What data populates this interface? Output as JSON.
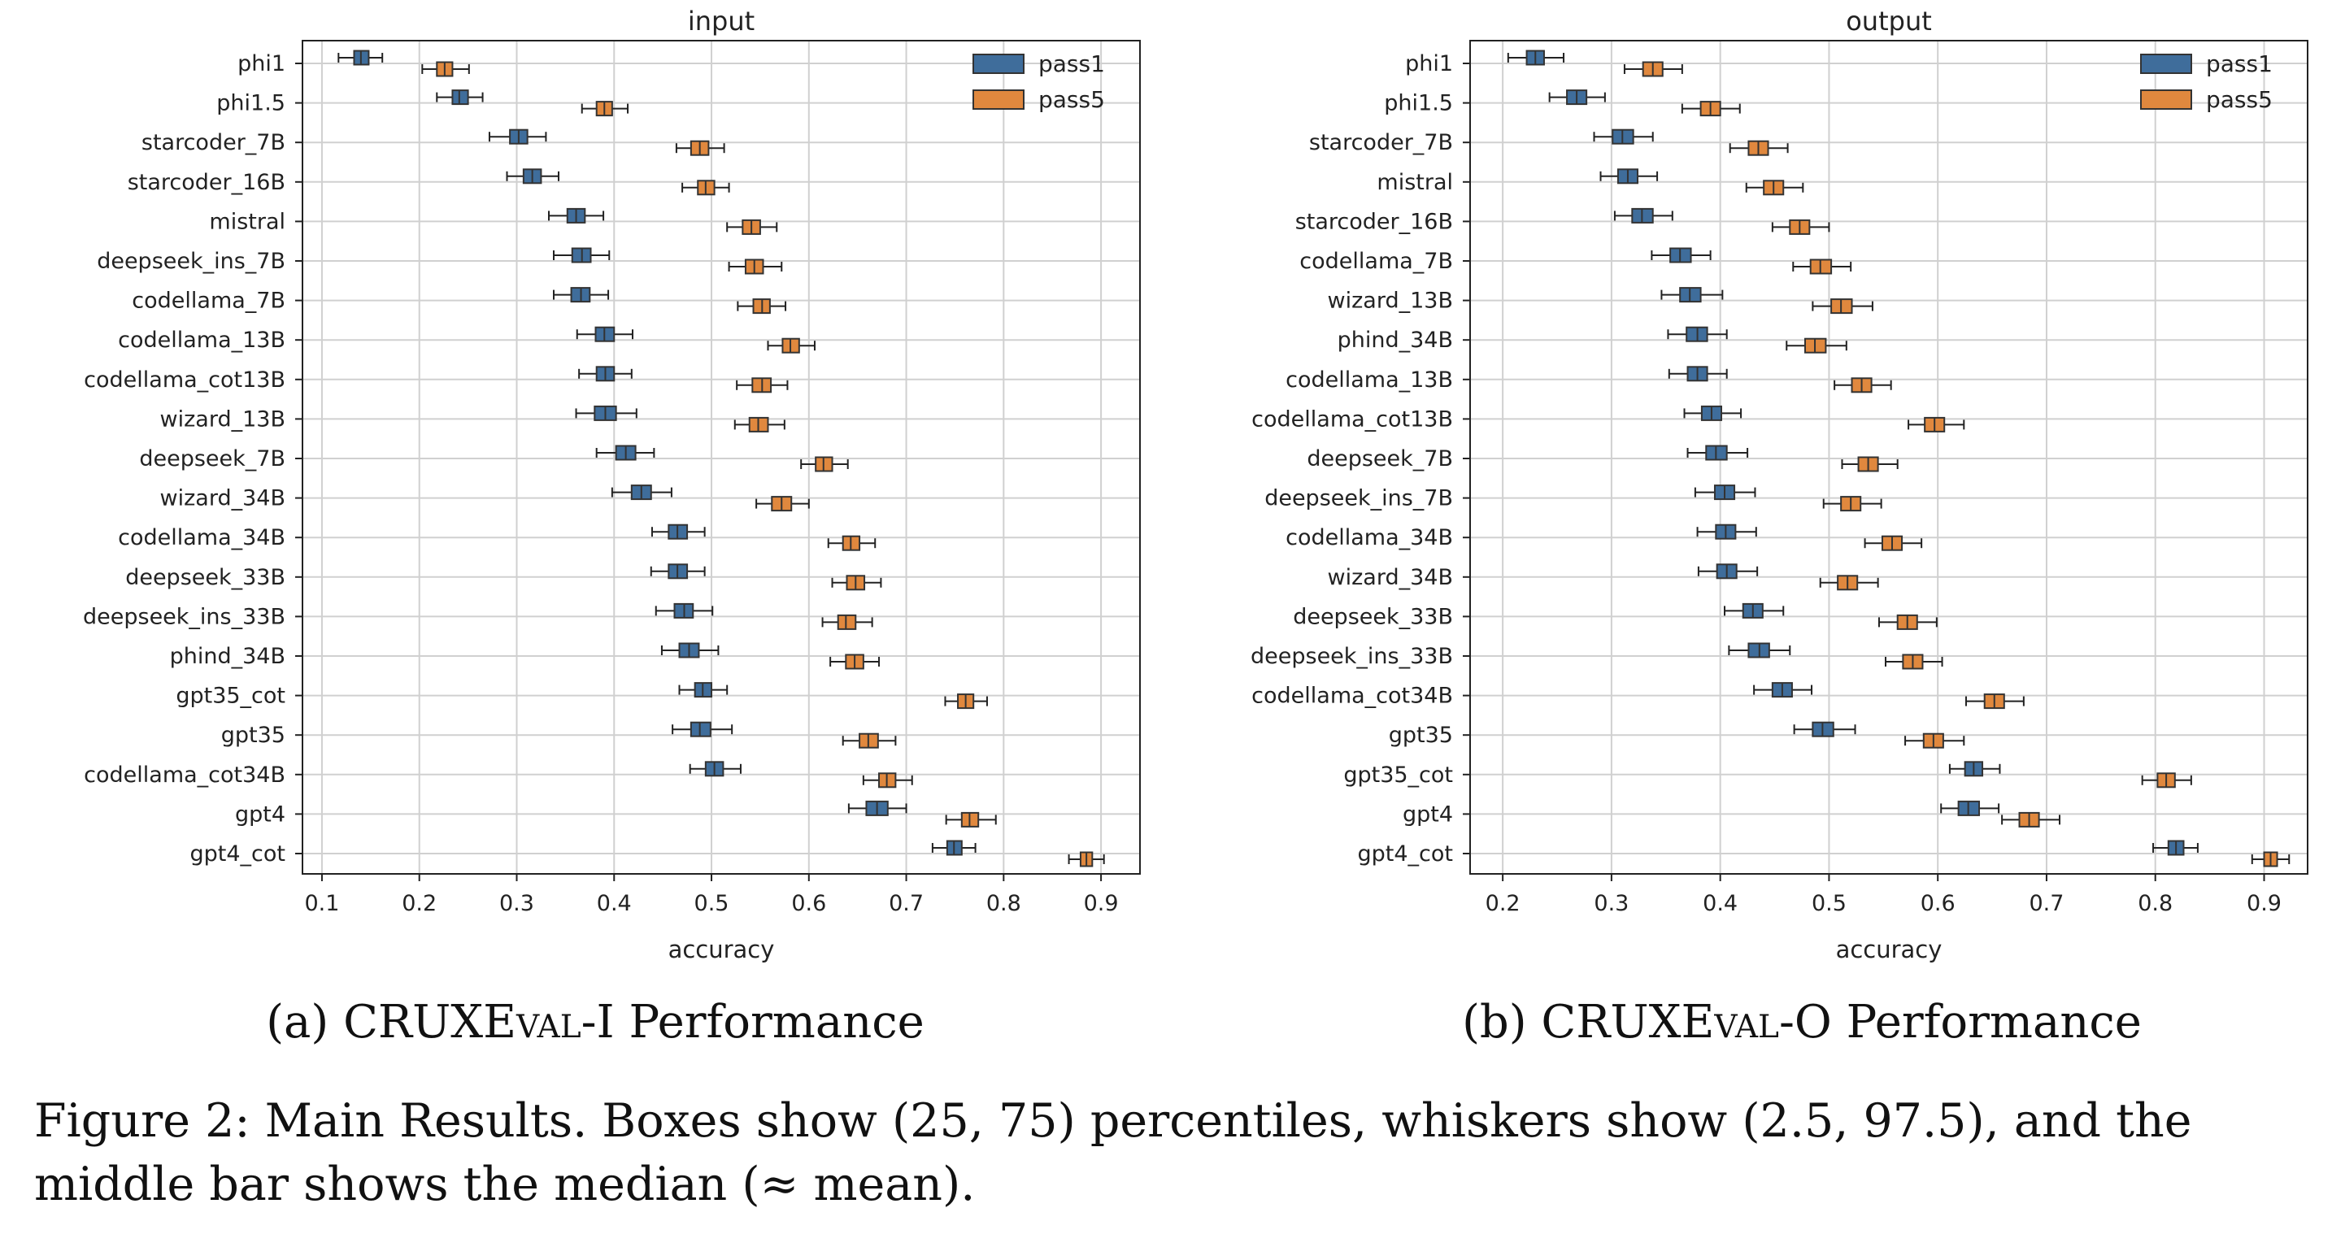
{
  "caption": {
    "sub_a_prefix": "(a) CRUXE",
    "sub_a_small_caps": "val",
    "sub_a_suffix": "-I Performance",
    "sub_b_prefix": "(b) CRUXE",
    "sub_b_small_caps": "val",
    "sub_b_suffix": "-O Performance",
    "figure_text": "Figure 2: Main Results. Boxes show (25, 75) percentiles, whiskers show (2.5, 97.5), and the middle bar shows the median (≈ mean)."
  },
  "colors": {
    "pass1": "#3f6d9b",
    "pass5": "#e0883e",
    "grid": "#d0d0d0",
    "axis": "#222222"
  },
  "chart_data": [
    {
      "type": "boxplot-horizontal",
      "title": "input",
      "xlabel": "accuracy",
      "xlim": [
        0.08,
        0.94
      ],
      "xticks": [
        0.1,
        0.2,
        0.3,
        0.4,
        0.5,
        0.6,
        0.7,
        0.8,
        0.9
      ],
      "grid": true,
      "legend": "top-right",
      "series_names": [
        "pass1",
        "pass5"
      ],
      "categories": [
        "phi1",
        "phi1.5",
        "starcoder_7B",
        "starcoder_16B",
        "mistral",
        "deepseek_ins_7B",
        "codellama_7B",
        "codellama_13B",
        "codellama_cot13B",
        "wizard_13B",
        "deepseek_7B",
        "wizard_34B",
        "codellama_34B",
        "deepseek_33B",
        "deepseek_ins_33B",
        "phind_34B",
        "gpt35_cot",
        "gpt35",
        "codellama_cot34B",
        "gpt4",
        "gpt4_cot"
      ],
      "pass1": [
        [
          0.117,
          0.133,
          0.14,
          0.148,
          0.162
        ],
        [
          0.218,
          0.234,
          0.241,
          0.25,
          0.265
        ],
        [
          0.272,
          0.293,
          0.302,
          0.311,
          0.33
        ],
        [
          0.29,
          0.307,
          0.316,
          0.325,
          0.343
        ],
        [
          0.333,
          0.352,
          0.361,
          0.37,
          0.389
        ],
        [
          0.338,
          0.357,
          0.367,
          0.376,
          0.395
        ],
        [
          0.338,
          0.356,
          0.366,
          0.375,
          0.394
        ],
        [
          0.362,
          0.381,
          0.39,
          0.4,
          0.419
        ],
        [
          0.364,
          0.382,
          0.391,
          0.4,
          0.418
        ],
        [
          0.361,
          0.38,
          0.391,
          0.402,
          0.423
        ],
        [
          0.382,
          0.402,
          0.412,
          0.422,
          0.441
        ],
        [
          0.398,
          0.418,
          0.428,
          0.438,
          0.459
        ],
        [
          0.439,
          0.456,
          0.465,
          0.475,
          0.493
        ],
        [
          0.438,
          0.456,
          0.465,
          0.475,
          0.493
        ],
        [
          0.443,
          0.462,
          0.472,
          0.481,
          0.501
        ],
        [
          0.449,
          0.467,
          0.477,
          0.487,
          0.507
        ],
        [
          0.467,
          0.483,
          0.491,
          0.5,
          0.516
        ],
        [
          0.46,
          0.479,
          0.488,
          0.499,
          0.521
        ],
        [
          0.478,
          0.494,
          0.503,
          0.512,
          0.53
        ],
        [
          0.641,
          0.659,
          0.67,
          0.681,
          0.7
        ],
        [
          0.727,
          0.742,
          0.749,
          0.757,
          0.771
        ]
      ],
      "pass5": [
        [
          0.203,
          0.218,
          0.226,
          0.234,
          0.251
        ],
        [
          0.367,
          0.382,
          0.39,
          0.398,
          0.414
        ],
        [
          0.464,
          0.479,
          0.488,
          0.497,
          0.513
        ],
        [
          0.47,
          0.486,
          0.494,
          0.503,
          0.518
        ],
        [
          0.516,
          0.532,
          0.541,
          0.55,
          0.567
        ],
        [
          0.518,
          0.535,
          0.544,
          0.553,
          0.572
        ],
        [
          0.527,
          0.543,
          0.552,
          0.56,
          0.576
        ],
        [
          0.558,
          0.573,
          0.581,
          0.59,
          0.606
        ],
        [
          0.526,
          0.542,
          0.552,
          0.561,
          0.578
        ],
        [
          0.524,
          0.539,
          0.548,
          0.558,
          0.575
        ],
        [
          0.592,
          0.607,
          0.615,
          0.624,
          0.64
        ],
        [
          0.546,
          0.562,
          0.572,
          0.582,
          0.6
        ],
        [
          0.62,
          0.635,
          0.643,
          0.652,
          0.668
        ],
        [
          0.624,
          0.639,
          0.648,
          0.657,
          0.674
        ],
        [
          0.614,
          0.63,
          0.638,
          0.648,
          0.665
        ],
        [
          0.622,
          0.638,
          0.647,
          0.656,
          0.672
        ],
        [
          0.74,
          0.753,
          0.761,
          0.769,
          0.783
        ],
        [
          0.635,
          0.652,
          0.661,
          0.671,
          0.689
        ],
        [
          0.656,
          0.672,
          0.68,
          0.689,
          0.706
        ],
        [
          0.741,
          0.757,
          0.765,
          0.774,
          0.792
        ],
        [
          0.867,
          0.879,
          0.885,
          0.891,
          0.903
        ]
      ]
    },
    {
      "type": "boxplot-horizontal",
      "title": "output",
      "xlabel": "accuracy",
      "xlim": [
        0.17,
        0.94
      ],
      "xticks": [
        0.2,
        0.3,
        0.4,
        0.5,
        0.6,
        0.7,
        0.8,
        0.9
      ],
      "grid": true,
      "legend": "top-right",
      "series_names": [
        "pass1",
        "pass5"
      ],
      "categories": [
        "phi1",
        "phi1.5",
        "starcoder_7B",
        "mistral",
        "starcoder_16B",
        "codellama_7B",
        "wizard_13B",
        "phind_34B",
        "codellama_13B",
        "codellama_cot13B",
        "deepseek_7B",
        "deepseek_ins_7B",
        "codellama_34B",
        "wizard_34B",
        "deepseek_33B",
        "deepseek_ins_33B",
        "codellama_cot34B",
        "gpt35",
        "gpt35_cot",
        "gpt4",
        "gpt4_cot"
      ],
      "pass1": [
        [
          0.205,
          0.222,
          0.23,
          0.238,
          0.256
        ],
        [
          0.243,
          0.259,
          0.268,
          0.277,
          0.294
        ],
        [
          0.284,
          0.301,
          0.31,
          0.32,
          0.338
        ],
        [
          0.29,
          0.306,
          0.315,
          0.324,
          0.342
        ],
        [
          0.303,
          0.319,
          0.328,
          0.338,
          0.356
        ],
        [
          0.337,
          0.354,
          0.363,
          0.373,
          0.391
        ],
        [
          0.346,
          0.363,
          0.372,
          0.382,
          0.402
        ],
        [
          0.352,
          0.369,
          0.379,
          0.388,
          0.406
        ],
        [
          0.353,
          0.37,
          0.379,
          0.388,
          0.406
        ],
        [
          0.367,
          0.383,
          0.392,
          0.401,
          0.419
        ],
        [
          0.37,
          0.387,
          0.396,
          0.406,
          0.425
        ],
        [
          0.377,
          0.395,
          0.404,
          0.413,
          0.432
        ],
        [
          0.379,
          0.396,
          0.405,
          0.414,
          0.433
        ],
        [
          0.38,
          0.397,
          0.406,
          0.415,
          0.434
        ],
        [
          0.404,
          0.421,
          0.43,
          0.439,
          0.458
        ],
        [
          0.408,
          0.426,
          0.436,
          0.445,
          0.464
        ],
        [
          0.431,
          0.448,
          0.457,
          0.466,
          0.484
        ],
        [
          0.468,
          0.485,
          0.494,
          0.504,
          0.524
        ],
        [
          0.611,
          0.625,
          0.633,
          0.641,
          0.657
        ],
        [
          0.603,
          0.619,
          0.628,
          0.638,
          0.656
        ],
        [
          0.798,
          0.812,
          0.819,
          0.826,
          0.839
        ]
      ],
      "pass5": [
        [
          0.312,
          0.329,
          0.338,
          0.347,
          0.365
        ],
        [
          0.365,
          0.382,
          0.391,
          0.4,
          0.418
        ],
        [
          0.409,
          0.426,
          0.435,
          0.444,
          0.462
        ],
        [
          0.424,
          0.44,
          0.449,
          0.458,
          0.476
        ],
        [
          0.448,
          0.464,
          0.473,
          0.482,
          0.5
        ],
        [
          0.467,
          0.483,
          0.492,
          0.502,
          0.52
        ],
        [
          0.485,
          0.502,
          0.511,
          0.521,
          0.54
        ],
        [
          0.461,
          0.478,
          0.487,
          0.497,
          0.516
        ],
        [
          0.505,
          0.521,
          0.53,
          0.539,
          0.557
        ],
        [
          0.573,
          0.588,
          0.597,
          0.606,
          0.624
        ],
        [
          0.512,
          0.527,
          0.536,
          0.545,
          0.563
        ],
        [
          0.495,
          0.511,
          0.52,
          0.529,
          0.548
        ],
        [
          0.533,
          0.549,
          0.558,
          0.567,
          0.585
        ],
        [
          0.492,
          0.508,
          0.517,
          0.526,
          0.545
        ],
        [
          0.546,
          0.563,
          0.572,
          0.581,
          0.599
        ],
        [
          0.552,
          0.568,
          0.577,
          0.586,
          0.604
        ],
        [
          0.626,
          0.643,
          0.652,
          0.661,
          0.679
        ],
        [
          0.57,
          0.587,
          0.596,
          0.605,
          0.624
        ],
        [
          0.788,
          0.802,
          0.81,
          0.818,
          0.833
        ],
        [
          0.659,
          0.675,
          0.684,
          0.693,
          0.712
        ],
        [
          0.889,
          0.9,
          0.906,
          0.912,
          0.923
        ]
      ]
    }
  ]
}
